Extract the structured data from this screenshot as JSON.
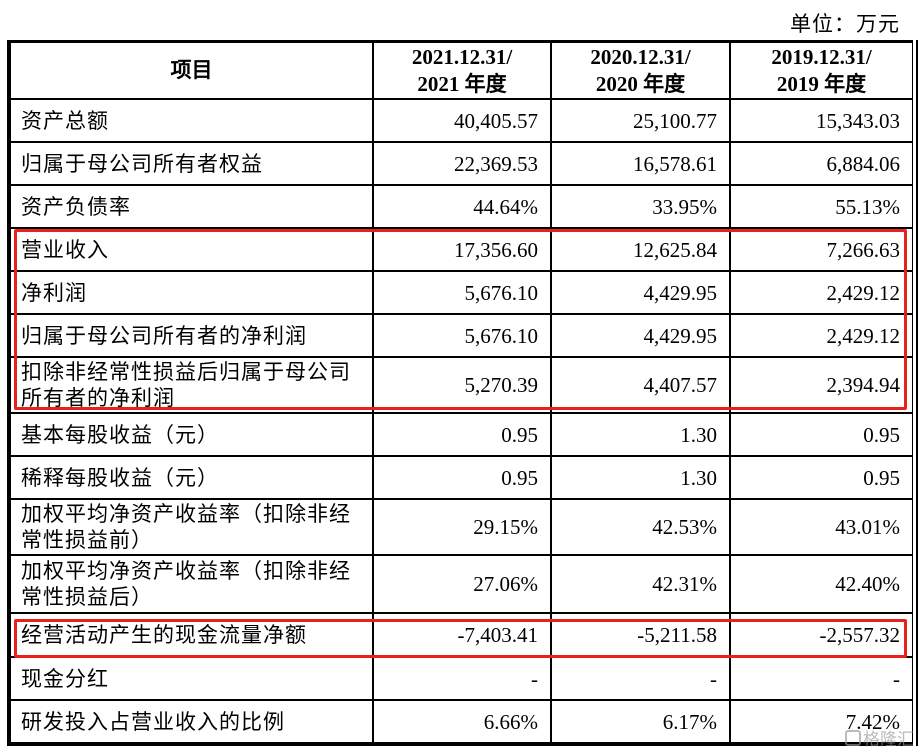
{
  "unit_label": "单位：万元",
  "table": {
    "headers": [
      {
        "line1": "项目",
        "line2": ""
      },
      {
        "line1": "2021.12.31/",
        "line2": "2021 年度"
      },
      {
        "line1": "2020.12.31/",
        "line2": "2020 年度"
      },
      {
        "line1": "2019.12.31/",
        "line2": "2019 年度"
      }
    ],
    "rows": [
      {
        "item": "资产总额",
        "y2021": "40,405.57",
        "y2020": "25,100.77",
        "y2019": "15,343.03"
      },
      {
        "item": "归属于母公司所有者权益",
        "y2021": "22,369.53",
        "y2020": "16,578.61",
        "y2019": "6,884.06"
      },
      {
        "item": "资产负债率",
        "y2021": "44.64%",
        "y2020": "33.95%",
        "y2019": "55.13%"
      },
      {
        "item": "营业收入",
        "y2021": "17,356.60",
        "y2020": "12,625.84",
        "y2019": "7,266.63"
      },
      {
        "item": "净利润",
        "y2021": "5,676.10",
        "y2020": "4,429.95",
        "y2019": "2,429.12"
      },
      {
        "item": "归属于母公司所有者的净利润",
        "y2021": "5,676.10",
        "y2020": "4,429.95",
        "y2019": "2,429.12"
      },
      {
        "item": "扣除非经常性损益后归属于母公司所有者的净利润",
        "y2021": "5,270.39",
        "y2020": "4,407.57",
        "y2019": "2,394.94"
      },
      {
        "item": "基本每股收益（元）",
        "y2021": "0.95",
        "y2020": "1.30",
        "y2019": "0.95"
      },
      {
        "item": "稀释每股收益（元）",
        "y2021": "0.95",
        "y2020": "1.30",
        "y2019": "0.95"
      },
      {
        "item": "加权平均净资产收益率（扣除非经常性损益前）",
        "y2021": "29.15%",
        "y2020": "42.53%",
        "y2019": "43.01%"
      },
      {
        "item": "加权平均净资产收益率（扣除非经常性损益后）",
        "y2021": "27.06%",
        "y2020": "42.31%",
        "y2019": "42.40%"
      },
      {
        "item": "经营活动产生的现金流量净额",
        "y2021": "-7,403.41",
        "y2020": "-5,211.58",
        "y2019": "-2,557.32"
      },
      {
        "item": "现金分红",
        "y2021": "-",
        "y2020": "-",
        "y2019": "-"
      },
      {
        "item": "研发投入占营业收入的比例",
        "y2021": "6.66%",
        "y2020": "6.17%",
        "y2019": "7.42%"
      }
    ]
  },
  "highlights": [
    {
      "rows": [
        "营业收入",
        "净利润",
        "归属于母公司所有者的净利润",
        "扣除非经常性损益后归属于母公司所有者的净利润"
      ],
      "color": "#e8221b"
    },
    {
      "rows": [
        "经营活动产生的现金流量净额"
      ],
      "color": "#e8221b"
    }
  ],
  "watermark": "格隆汇"
}
